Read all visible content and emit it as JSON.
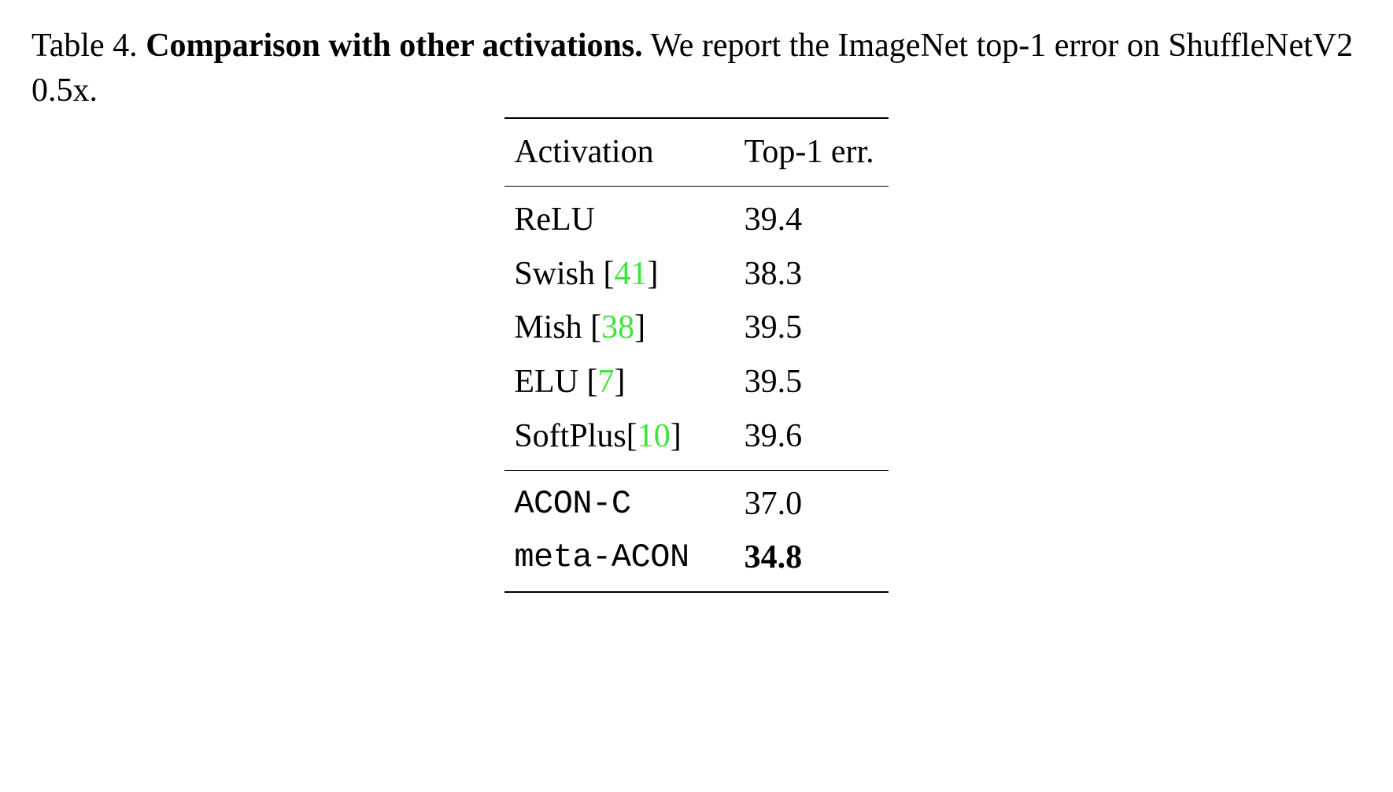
{
  "caption": {
    "label": "Table 4.",
    "title": "Comparison with other activations.",
    "desc": "We report the ImageNet top-1 error on ShuffleNetV2 0.5x."
  },
  "table": {
    "columns": {
      "activation": "Activation",
      "top1err": "Top-1 err."
    },
    "section1": [
      {
        "name": "ReLU",
        "cite": "",
        "err": "39.4"
      },
      {
        "name": "Swish ",
        "cite": "41",
        "err": "38.3"
      },
      {
        "name": "Mish ",
        "cite": "38",
        "err": "39.5"
      },
      {
        "name": "ELU ",
        "cite": "7",
        "err": "39.5"
      },
      {
        "name": "SoftPlus",
        "cite": "10",
        "err": "39.6"
      }
    ],
    "section2": [
      {
        "name": "ACON-C",
        "err": "37.0",
        "bold_err": false
      },
      {
        "name": "meta-ACON",
        "err": "34.8",
        "bold_err": true
      }
    ]
  },
  "style": {
    "cite_color": "#39e639",
    "text_color": "#000000",
    "background": "#ffffff",
    "base_fontsize_pt": 31
  }
}
